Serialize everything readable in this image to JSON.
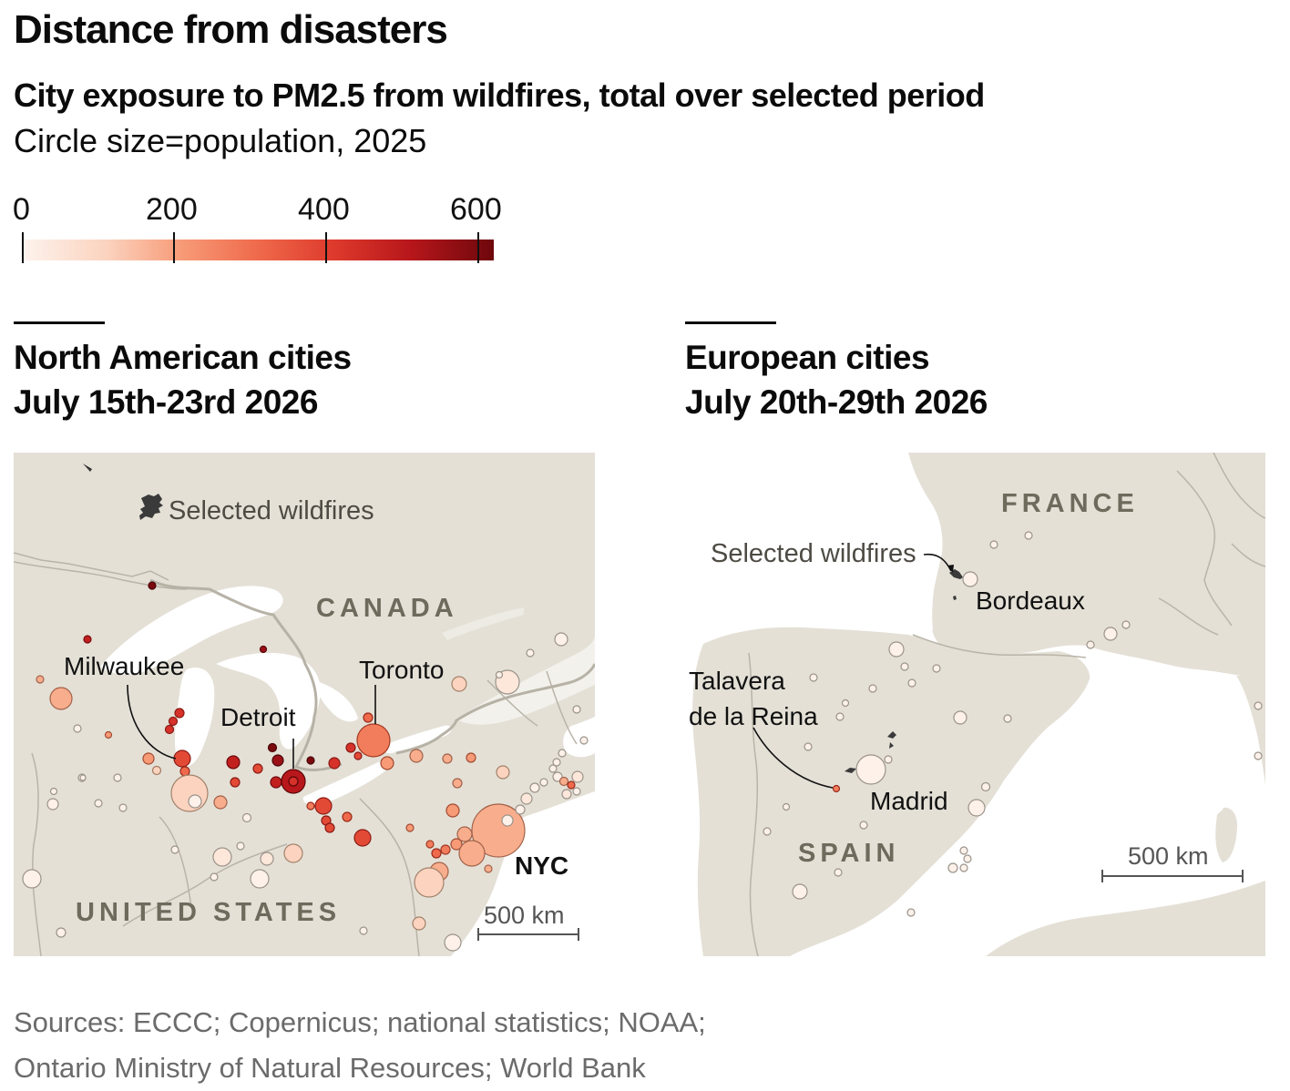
{
  "header": {
    "title": "Distance from disasters",
    "subtitle": "City exposure to PM2.5 from wildfires, total over selected period",
    "note": "Circle size=population, 2025"
  },
  "legend": {
    "ticks": [
      "0",
      "200",
      "400",
      "600"
    ],
    "colors": [
      "#fdf1ea",
      "#fbd4c0",
      "#f8ad8c",
      "#f27d5c",
      "#e34a36",
      "#c1201e",
      "#7a0a0d"
    ]
  },
  "panels": {
    "north_america": {
      "title_line1": "North American cities",
      "title_line2": "July 15th-23rd 2026",
      "country_canada": "CANADA",
      "country_us": "UNITED STATES",
      "wildfire_label": "Selected wildfires",
      "cities": {
        "milwaukee": "Milwaukee",
        "detroit": "Detroit",
        "toronto": "Toronto",
        "nyc": "NYC"
      },
      "scale_label": "500 km"
    },
    "europe": {
      "title_line1": "European cities",
      "title_line2": "July 20th-29th 2026",
      "country_france": "FRANCE",
      "country_spain": "SPAIN",
      "wildfire_label": "Selected wildfires",
      "cities": {
        "bordeaux": "Bordeaux",
        "talavera_line1": "Talavera",
        "talavera_line2": "de la Reina",
        "madrid": "Madrid"
      },
      "scale_label": "500 km"
    }
  },
  "sources": {
    "line1": "Sources: ECCC; Copernicus; national statistics; NOAA;",
    "line2": "Ontario Ministry of Natural Resources; World Bank"
  },
  "colors": {
    "land": "#e4e0d6",
    "water": "#ffffff",
    "border": "#c9c5ba",
    "country_label": "#6e6a5c"
  }
}
